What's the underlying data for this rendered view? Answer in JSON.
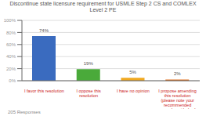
{
  "chart_data": {
    "type": "bar",
    "title": "Discontinue state licensure requirement for USMLE Step 2 CS and COMLEX Level 2 PE",
    "categories": [
      "I favor this resolution",
      "I oppose this\nresolution",
      "I have no opinion",
      "I propose amending\nthis resolution\n(please note your\nrecommended\namendment below)"
    ],
    "values": [
      74,
      19,
      5,
      2
    ],
    "value_labels": [
      "74%",
      "19%",
      "5%",
      "2%"
    ],
    "data_labels": true,
    "colors": [
      "#3a6bbf",
      "#4aaa3a",
      "#f0a820",
      "#e07020"
    ],
    "ylim": [
      0,
      100
    ],
    "yticks": [
      {
        "value": 0,
        "label": "0%"
      },
      {
        "value": 20,
        "label": "20%"
      },
      {
        "value": 40,
        "label": "40%"
      },
      {
        "value": 60,
        "label": "60%"
      },
      {
        "value": 80,
        "label": "80%"
      },
      {
        "value": 100,
        "label": "100%"
      }
    ],
    "grid": true,
    "annotations": [
      "205 Responses"
    ]
  }
}
